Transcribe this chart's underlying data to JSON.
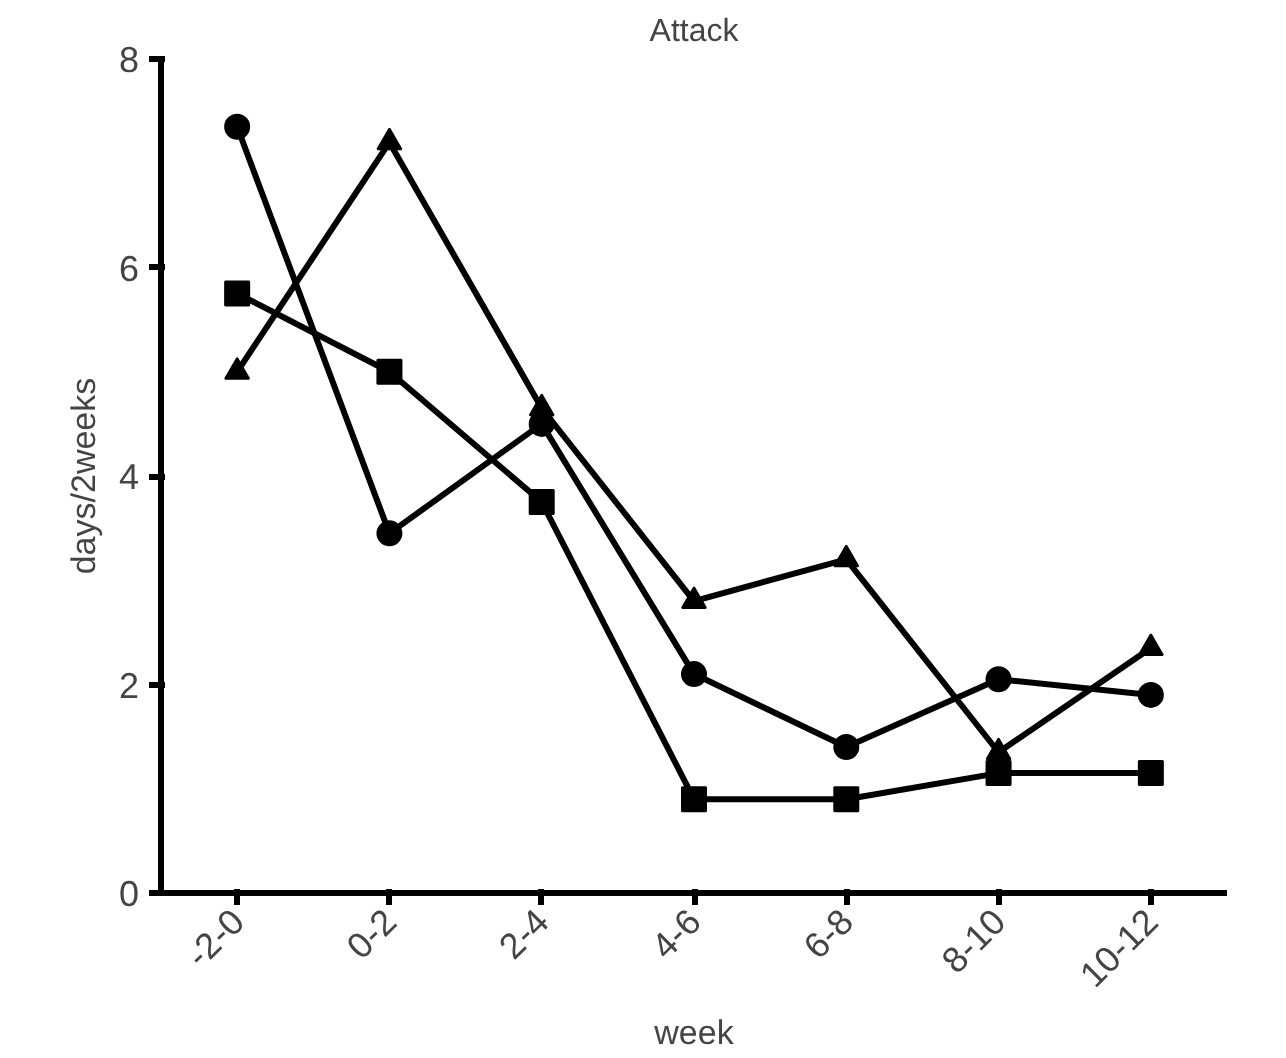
{
  "chart_data": {
    "type": "line",
    "title": "Attack",
    "xlabel": "week",
    "ylabel": "days/2weeks",
    "categories": [
      "-2-0",
      "0-2",
      "2-4",
      "4-6",
      "6-8",
      "8-10",
      "10-12"
    ],
    "series": [
      {
        "color": "#000000",
        "marker": "square",
        "values": [
          5.75,
          5.0,
          3.75,
          0.9,
          0.9,
          1.15,
          1.15
        ]
      },
      {
        "color": "#000000",
        "marker": "circle",
        "values": [
          7.35,
          3.45,
          4.5,
          2.1,
          1.4,
          2.05,
          1.9
        ]
      },
      {
        "color": "#000000",
        "marker": "triangle",
        "values": [
          5.0,
          7.2,
          4.65,
          2.8,
          3.2,
          1.35,
          2.35
        ]
      }
    ],
    "ylim": [
      0,
      8
    ],
    "yticks": [
      0,
      2,
      4,
      6,
      8
    ],
    "grid": false,
    "line_style": "solid"
  }
}
